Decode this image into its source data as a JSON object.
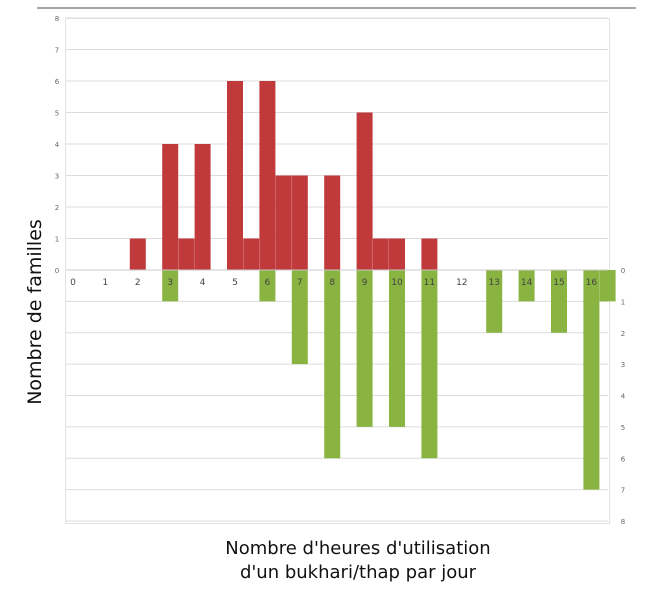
{
  "chart_data": {
    "type": "bar",
    "ylabel": "Nombre de familles",
    "xlabel_lines": [
      "Nombre d'heures d'utilisation",
      "d'un bukhari/thap par jour"
    ],
    "categories": [
      "0",
      "1",
      "2",
      "3",
      "4",
      "5",
      "6",
      "7",
      "8",
      "9",
      "10",
      "11",
      "12",
      "13",
      "14",
      "15",
      "16"
    ],
    "series": [
      {
        "color": "#c0393b",
        "direction": "up",
        "bars": [
          {
            "x": 2,
            "value": 1
          },
          {
            "x": 3,
            "value": 4
          },
          {
            "x": 3.5,
            "value": 1
          },
          {
            "x": 4,
            "value": 4
          },
          {
            "x": 5,
            "value": 6
          },
          {
            "x": 5.5,
            "value": 1
          },
          {
            "x": 6,
            "value": 6
          },
          {
            "x": 6.5,
            "value": 3
          },
          {
            "x": 7,
            "value": 3
          },
          {
            "x": 8,
            "value": 3
          },
          {
            "x": 9,
            "value": 5
          },
          {
            "x": 9.5,
            "value": 1
          },
          {
            "x": 10,
            "value": 1
          },
          {
            "x": 11,
            "value": 1
          }
        ]
      },
      {
        "color": "#8ab441",
        "direction": "down",
        "bars": [
          {
            "x": 3,
            "value": 1
          },
          {
            "x": 6,
            "value": 1
          },
          {
            "x": 7,
            "value": 3
          },
          {
            "x": 8,
            "value": 6
          },
          {
            "x": 9,
            "value": 5
          },
          {
            "x": 10,
            "value": 5
          },
          {
            "x": 11,
            "value": 6
          },
          {
            "x": 13,
            "value": 2
          },
          {
            "x": 14,
            "value": 1
          },
          {
            "x": 15,
            "value": 2
          },
          {
            "x": 16,
            "value": 7
          },
          {
            "x": 16.5,
            "value": 1
          }
        ]
      }
    ],
    "left_axis": {
      "ylim": [
        0,
        8
      ],
      "ticks": [
        "0",
        "1",
        "2",
        "3",
        "4",
        "5",
        "6",
        "7",
        "8"
      ]
    },
    "right_axis": {
      "ylim": [
        0,
        8
      ],
      "ticks": [
        "0",
        "1",
        "2",
        "3",
        "4",
        "5",
        "6",
        "7",
        "8"
      ],
      "inverted": true
    },
    "grid": true
  }
}
